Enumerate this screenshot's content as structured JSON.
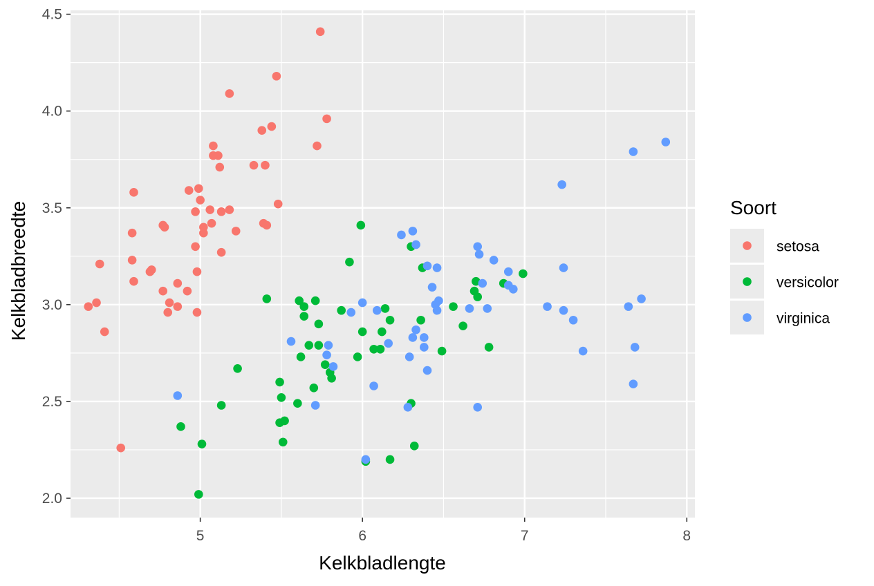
{
  "chart_data": {
    "type": "scatter",
    "xlabel": "Kelkbladlengte",
    "ylabel": "Kelkbladbreedte",
    "xlim": [
      4.2,
      8.05
    ],
    "ylim": [
      1.9,
      4.52
    ],
    "x_ticks": [
      5,
      6,
      7,
      8
    ],
    "x_tick_labels": [
      "5",
      "6",
      "7",
      "8"
    ],
    "y_ticks": [
      2.0,
      2.5,
      3.0,
      3.5,
      4.0,
      4.5
    ],
    "y_tick_labels": [
      "2.0",
      "2.5",
      "3.0",
      "3.5",
      "4.0",
      "4.5"
    ],
    "grid": true,
    "legend": {
      "title": "Soort",
      "placement": "right"
    },
    "series": [
      {
        "name": "setosa",
        "color": "#F8766D",
        "points": [
          [
            5.74,
            4.41
          ],
          [
            5.47,
            4.18
          ],
          [
            5.18,
            4.09
          ],
          [
            5.78,
            3.96
          ],
          [
            5.44,
            3.92
          ],
          [
            5.38,
            3.9
          ],
          [
            5.72,
            3.82
          ],
          [
            5.08,
            3.82
          ],
          [
            5.08,
            3.77
          ],
          [
            5.11,
            3.77
          ],
          [
            5.12,
            3.71
          ],
          [
            5.33,
            3.72
          ],
          [
            5.4,
            3.72
          ],
          [
            4.59,
            3.58
          ],
          [
            4.93,
            3.59
          ],
          [
            4.99,
            3.6
          ],
          [
            5.0,
            3.54
          ],
          [
            5.48,
            3.52
          ],
          [
            5.18,
            3.49
          ],
          [
            5.06,
            3.49
          ],
          [
            5.13,
            3.48
          ],
          [
            4.97,
            3.48
          ],
          [
            5.39,
            3.42
          ],
          [
            5.41,
            3.41
          ],
          [
            5.07,
            3.42
          ],
          [
            4.77,
            3.41
          ],
          [
            4.78,
            3.4
          ],
          [
            5.02,
            3.4
          ],
          [
            5.22,
            3.38
          ],
          [
            4.58,
            3.37
          ],
          [
            5.02,
            3.37
          ],
          [
            4.97,
            3.3
          ],
          [
            5.13,
            3.27
          ],
          [
            4.58,
            3.23
          ],
          [
            4.38,
            3.21
          ],
          [
            4.7,
            3.18
          ],
          [
            4.69,
            3.17
          ],
          [
            4.98,
            3.17
          ],
          [
            4.59,
            3.12
          ],
          [
            4.86,
            3.11
          ],
          [
            4.77,
            3.07
          ],
          [
            4.92,
            3.07
          ],
          [
            4.81,
            3.01
          ],
          [
            4.36,
            3.01
          ],
          [
            4.86,
            2.99
          ],
          [
            4.31,
            2.99
          ],
          [
            4.8,
            2.96
          ],
          [
            4.98,
            2.96
          ],
          [
            4.41,
            2.86
          ],
          [
            4.51,
            2.26
          ]
        ]
      },
      {
        "name": "versicolor",
        "color": "#00BA38",
        "points": [
          [
            5.99,
            3.41
          ],
          [
            6.3,
            3.3
          ],
          [
            6.37,
            3.19
          ],
          [
            6.99,
            3.16
          ],
          [
            5.92,
            3.22
          ],
          [
            6.7,
            3.12
          ],
          [
            6.87,
            3.11
          ],
          [
            6.69,
            3.07
          ],
          [
            6.71,
            3.04
          ],
          [
            5.41,
            3.03
          ],
          [
            5.61,
            3.02
          ],
          [
            5.71,
            3.02
          ],
          [
            6.56,
            2.99
          ],
          [
            5.64,
            2.99
          ],
          [
            6.14,
            2.98
          ],
          [
            5.87,
            2.97
          ],
          [
            5.64,
            2.94
          ],
          [
            6.17,
            2.92
          ],
          [
            6.36,
            2.92
          ],
          [
            5.73,
            2.9
          ],
          [
            6.62,
            2.89
          ],
          [
            6.0,
            2.86
          ],
          [
            6.12,
            2.86
          ],
          [
            5.67,
            2.79
          ],
          [
            5.73,
            2.79
          ],
          [
            6.78,
            2.78
          ],
          [
            6.07,
            2.77
          ],
          [
            6.11,
            2.77
          ],
          [
            6.49,
            2.76
          ],
          [
            5.62,
            2.73
          ],
          [
            5.97,
            2.73
          ],
          [
            5.77,
            2.69
          ],
          [
            5.23,
            2.67
          ],
          [
            5.8,
            2.65
          ],
          [
            5.81,
            2.62
          ],
          [
            5.49,
            2.6
          ],
          [
            5.7,
            2.57
          ],
          [
            5.5,
            2.52
          ],
          [
            6.3,
            2.49
          ],
          [
            5.6,
            2.49
          ],
          [
            5.13,
            2.48
          ],
          [
            5.52,
            2.4
          ],
          [
            5.49,
            2.39
          ],
          [
            4.88,
            2.37
          ],
          [
            5.51,
            2.29
          ],
          [
            5.01,
            2.28
          ],
          [
            6.32,
            2.27
          ],
          [
            6.17,
            2.2
          ],
          [
            6.02,
            2.19
          ],
          [
            4.99,
            2.02
          ]
        ]
      },
      {
        "name": "virginica",
        "color": "#619CFF",
        "points": [
          [
            7.87,
            3.84
          ],
          [
            7.67,
            3.79
          ],
          [
            7.23,
            3.62
          ],
          [
            6.31,
            3.38
          ],
          [
            6.24,
            3.36
          ],
          [
            6.33,
            3.31
          ],
          [
            6.71,
            3.3
          ],
          [
            6.72,
            3.26
          ],
          [
            6.81,
            3.23
          ],
          [
            6.4,
            3.2
          ],
          [
            6.46,
            3.19
          ],
          [
            7.24,
            3.19
          ],
          [
            6.9,
            3.17
          ],
          [
            6.74,
            3.11
          ],
          [
            6.9,
            3.1
          ],
          [
            6.43,
            3.09
          ],
          [
            6.93,
            3.08
          ],
          [
            7.72,
            3.03
          ],
          [
            6.47,
            3.02
          ],
          [
            6.0,
            3.01
          ],
          [
            6.45,
            3.0
          ],
          [
            7.14,
            2.99
          ],
          [
            7.64,
            2.99
          ],
          [
            6.66,
            2.98
          ],
          [
            6.77,
            2.98
          ],
          [
            6.46,
            2.97
          ],
          [
            6.09,
            2.97
          ],
          [
            5.93,
            2.96
          ],
          [
            7.24,
            2.97
          ],
          [
            7.3,
            2.92
          ],
          [
            6.33,
            2.87
          ],
          [
            6.31,
            2.83
          ],
          [
            6.38,
            2.83
          ],
          [
            5.56,
            2.81
          ],
          [
            6.16,
            2.8
          ],
          [
            5.79,
            2.79
          ],
          [
            6.38,
            2.78
          ],
          [
            7.68,
            2.78
          ],
          [
            7.36,
            2.76
          ],
          [
            5.78,
            2.74
          ],
          [
            6.29,
            2.73
          ],
          [
            5.82,
            2.68
          ],
          [
            6.4,
            2.66
          ],
          [
            7.67,
            2.59
          ],
          [
            6.07,
            2.58
          ],
          [
            4.86,
            2.53
          ],
          [
            5.71,
            2.48
          ],
          [
            6.28,
            2.47
          ],
          [
            6.71,
            2.47
          ],
          [
            6.02,
            2.2
          ]
        ]
      }
    ]
  }
}
